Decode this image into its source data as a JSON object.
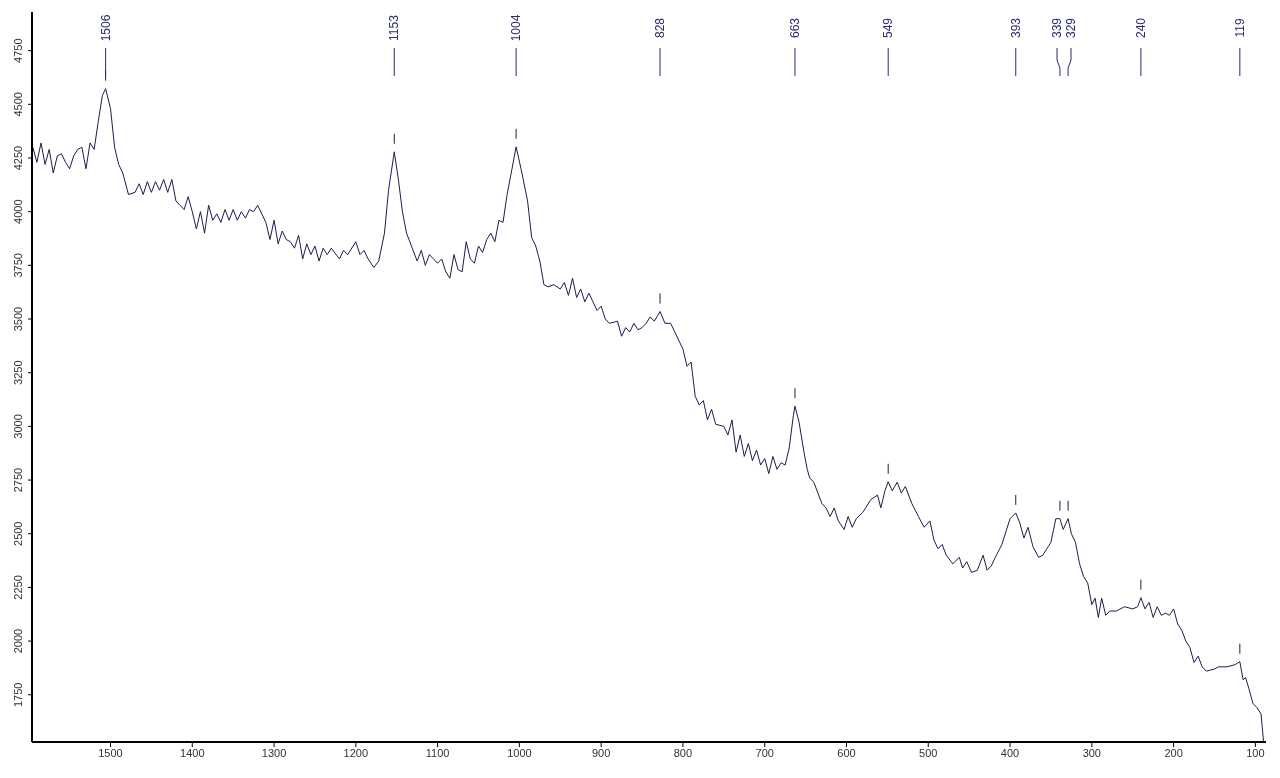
{
  "chart_data": {
    "type": "line",
    "xlim": [
      1596,
      87
    ],
    "ylim": [
      1530,
      4930
    ],
    "xticks": [
      1500,
      1400,
      1300,
      1200,
      1100,
      1000,
      900,
      800,
      700,
      600,
      500,
      400,
      300,
      200,
      100
    ],
    "yticks": [
      1750,
      2000,
      2250,
      2500,
      2750,
      3000,
      3250,
      3500,
      3750,
      4000,
      4250,
      4500,
      4750
    ],
    "marker": "none",
    "line_style": "solid",
    "series": [
      {
        "color": "#1c1c50",
        "x": [
          1595,
          1590,
          1585,
          1580,
          1575,
          1570,
          1565,
          1560,
          1555,
          1550,
          1545,
          1540,
          1535,
          1530,
          1525,
          1520,
          1515,
          1510,
          1506,
          1500,
          1495,
          1490,
          1485,
          1478,
          1470,
          1465,
          1460,
          1455,
          1450,
          1445,
          1440,
          1435,
          1430,
          1425,
          1420,
          1415,
          1410,
          1405,
          1400,
          1395,
          1390,
          1385,
          1380,
          1375,
          1370,
          1365,
          1360,
          1355,
          1350,
          1345,
          1340,
          1335,
          1330,
          1325,
          1320,
          1310,
          1305,
          1300,
          1295,
          1290,
          1285,
          1280,
          1275,
          1270,
          1265,
          1260,
          1255,
          1250,
          1245,
          1240,
          1235,
          1230,
          1220,
          1215,
          1210,
          1200,
          1195,
          1190,
          1185,
          1178,
          1172,
          1165,
          1160,
          1153,
          1148,
          1143,
          1138,
          1132,
          1125,
          1120,
          1115,
          1110,
          1100,
          1095,
          1090,
          1085,
          1080,
          1075,
          1070,
          1065,
          1060,
          1055,
          1050,
          1045,
          1040,
          1035,
          1030,
          1025,
          1020,
          1015,
          1010,
          1004,
          998,
          990,
          985,
          980,
          975,
          970,
          965,
          958,
          950,
          945,
          940,
          935,
          930,
          925,
          920,
          915,
          910,
          905,
          900,
          895,
          890,
          880,
          875,
          870,
          865,
          860,
          855,
          850,
          845,
          840,
          835,
          828,
          822,
          815,
          810,
          800,
          795,
          790,
          785,
          780,
          775,
          770,
          765,
          760,
          750,
          745,
          740,
          735,
          730,
          725,
          720,
          715,
          710,
          705,
          700,
          695,
          690,
          685,
          680,
          675,
          670,
          665,
          663,
          658,
          652,
          648,
          645,
          640,
          630,
          625,
          620,
          615,
          610,
          603,
          598,
          593,
          588,
          580,
          570,
          562,
          558,
          553,
          549,
          544,
          538,
          533,
          528,
          520,
          512,
          505,
          498,
          493,
          488,
          483,
          478,
          470,
          462,
          458,
          453,
          447,
          440,
          433,
          428,
          423,
          418,
          410,
          405,
          400,
          393,
          388,
          383,
          378,
          372,
          365,
          360,
          355,
          350,
          344,
          339,
          335,
          329,
          325,
          320,
          315,
          310,
          305,
          300,
          296,
          292,
          288,
          283,
          278,
          270,
          260,
          250,
          244,
          240,
          235,
          230,
          225,
          220,
          215,
          210,
          205,
          200,
          195,
          190,
          185,
          180,
          175,
          170,
          165,
          160,
          150,
          145,
          135,
          125,
          119,
          115,
          112,
          108,
          103,
          98,
          93,
          90
        ],
        "values": [
          4300,
          4230,
          4320,
          4220,
          4290,
          4180,
          4260,
          4270,
          4230,
          4200,
          4260,
          4290,
          4300,
          4200,
          4320,
          4290,
          4420,
          4540,
          4573,
          4480,
          4300,
          4220,
          4180,
          4080,
          4090,
          4130,
          4080,
          4140,
          4090,
          4140,
          4100,
          4150,
          4090,
          4150,
          4050,
          4030,
          4010,
          4070,
          4000,
          3920,
          4000,
          3900,
          4030,
          3960,
          3990,
          3950,
          4010,
          3960,
          4010,
          3960,
          4000,
          3970,
          4010,
          4000,
          4030,
          3950,
          3870,
          3960,
          3850,
          3910,
          3870,
          3860,
          3830,
          3890,
          3780,
          3850,
          3800,
          3840,
          3770,
          3830,
          3800,
          3830,
          3780,
          3820,
          3800,
          3860,
          3800,
          3820,
          3780,
          3740,
          3770,
          3900,
          4100,
          4279,
          4150,
          4000,
          3900,
          3840,
          3770,
          3820,
          3750,
          3800,
          3760,
          3780,
          3720,
          3690,
          3800,
          3730,
          3720,
          3860,
          3780,
          3760,
          3840,
          3810,
          3870,
          3900,
          3860,
          3960,
          3950,
          4080,
          4180,
          4302,
          4200,
          4050,
          3880,
          3840,
          3770,
          3660,
          3650,
          3660,
          3640,
          3670,
          3610,
          3690,
          3600,
          3640,
          3580,
          3620,
          3580,
          3540,
          3560,
          3500,
          3480,
          3490,
          3420,
          3460,
          3440,
          3480,
          3450,
          3460,
          3480,
          3510,
          3490,
          3535,
          3480,
          3480,
          3440,
          3360,
          3280,
          3300,
          3140,
          3100,
          3120,
          3030,
          3080,
          3010,
          3000,
          2960,
          3030,
          2880,
          2960,
          2860,
          2920,
          2840,
          2890,
          2820,
          2850,
          2780,
          2860,
          2800,
          2830,
          2820,
          2900,
          3050,
          3094,
          3020,
          2880,
          2800,
          2760,
          2740,
          2640,
          2620,
          2580,
          2620,
          2560,
          2520,
          2580,
          2530,
          2570,
          2600,
          2660,
          2680,
          2620,
          2700,
          2742,
          2700,
          2740,
          2690,
          2720,
          2640,
          2580,
          2530,
          2560,
          2470,
          2430,
          2450,
          2400,
          2360,
          2390,
          2340,
          2370,
          2320,
          2330,
          2400,
          2330,
          2350,
          2390,
          2450,
          2510,
          2570,
          2597,
          2550,
          2480,
          2530,
          2440,
          2390,
          2400,
          2430,
          2460,
          2570,
          2570,
          2520,
          2570,
          2500,
          2460,
          2360,
          2300,
          2270,
          2170,
          2200,
          2110,
          2200,
          2120,
          2140,
          2140,
          2160,
          2150,
          2160,
          2202,
          2150,
          2180,
          2110,
          2160,
          2120,
          2130,
          2120,
          2150,
          2080,
          2050,
          2000,
          1970,
          1900,
          1930,
          1880,
          1860,
          1870,
          1880,
          1880,
          1890,
          1904,
          1820,
          1830,
          1780,
          1710,
          1690,
          1660,
          1530
        ]
      }
    ],
    "annotations": [
      {
        "text": "1506",
        "x": 1506
      },
      {
        "text": "1153",
        "x": 1153
      },
      {
        "text": "1004",
        "x": 1004
      },
      {
        "text": "828",
        "x": 828
      },
      {
        "text": "663",
        "x": 663
      },
      {
        "text": "549",
        "x": 549
      },
      {
        "text": "393",
        "x": 393
      },
      {
        "text": "339",
        "x": 339
      },
      {
        "text": "329",
        "x": 329
      },
      {
        "text": "240",
        "x": 240
      },
      {
        "text": "119",
        "x": 119
      }
    ]
  }
}
